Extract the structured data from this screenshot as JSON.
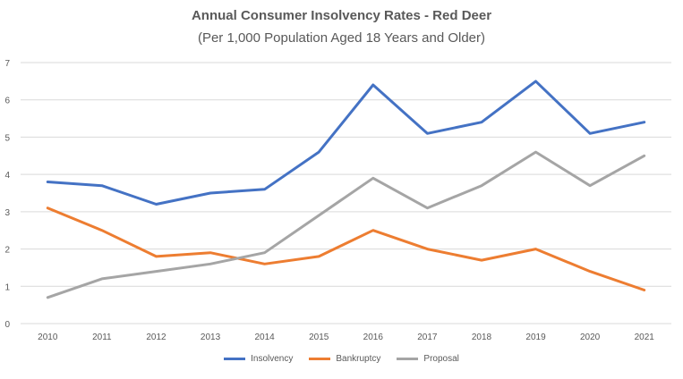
{
  "chart_data": {
    "type": "line",
    "title": "Annual Consumer Insolvency Rates - Red Deer",
    "subtitle": "(Per 1,000 Population Aged 18 Years and Older)",
    "xlabel": "",
    "ylabel": "",
    "categories": [
      "2010",
      "2011",
      "2012",
      "2013",
      "2014",
      "2015",
      "2016",
      "2017",
      "2018",
      "2019",
      "2020",
      "2021"
    ],
    "ylim": [
      0,
      7
    ],
    "yticks": [
      0,
      1,
      2,
      3,
      4,
      5,
      6,
      7
    ],
    "grid": true,
    "legend_position": "bottom",
    "series": [
      {
        "name": "Insolvency",
        "color": "#4472C4",
        "values": [
          3.8,
          3.7,
          3.2,
          3.5,
          3.6,
          4.6,
          6.4,
          5.1,
          5.4,
          6.5,
          5.1,
          5.4
        ]
      },
      {
        "name": "Bankruptcy",
        "color": "#ED7D31",
        "values": [
          3.1,
          2.5,
          1.8,
          1.9,
          1.6,
          1.8,
          2.5,
          2.0,
          1.7,
          2.0,
          1.4,
          0.9
        ]
      },
      {
        "name": "Proposal",
        "color": "#A5A5A5",
        "values": [
          0.7,
          1.2,
          1.4,
          1.6,
          1.9,
          2.9,
          3.9,
          3.1,
          3.7,
          4.6,
          3.7,
          4.5
        ]
      }
    ]
  }
}
